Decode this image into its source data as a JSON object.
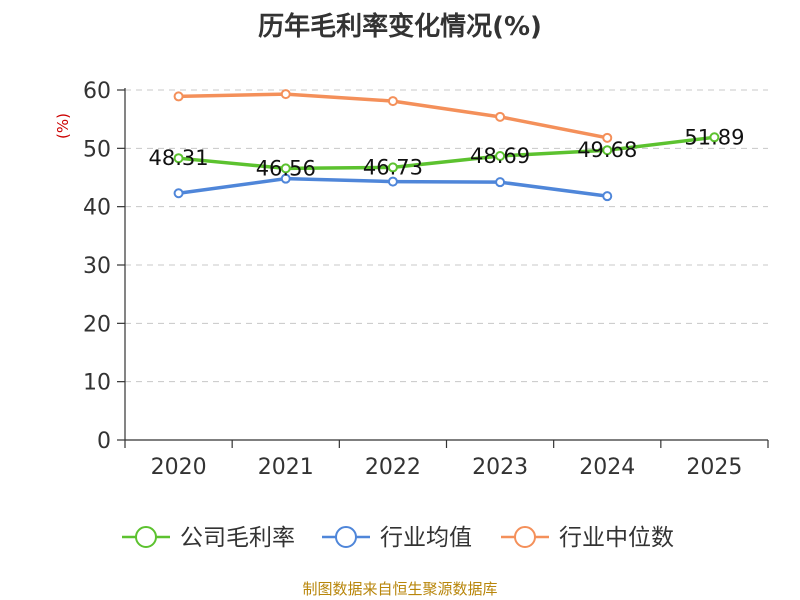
{
  "chart_data": {
    "type": "line",
    "title": "历年毛利率变化情况(%)",
    "ylabel": "(%)",
    "xlabel": "",
    "categories": [
      "2020",
      "2021",
      "2022",
      "2023",
      "2024",
      "2025"
    ],
    "ylim": [
      0,
      60
    ],
    "yticks": [
      0,
      10,
      20,
      30,
      40,
      50,
      60
    ],
    "grid": true,
    "legend_position": "bottom",
    "series": [
      {
        "name": "公司毛利率",
        "color": "#5cc22f",
        "values": [
          48.31,
          46.56,
          46.73,
          48.69,
          49.68,
          51.89
        ],
        "labels": [
          "48.31",
          "46.56",
          "46.73",
          "48.69",
          "49.68",
          "51.89"
        ]
      },
      {
        "name": "行业均值",
        "color": "#4f86d9",
        "values": [
          42.3,
          44.8,
          44.3,
          44.2,
          41.8,
          null
        ]
      },
      {
        "name": "行业中位数",
        "color": "#f4905a",
        "values": [
          58.9,
          59.3,
          58.1,
          55.4,
          51.8,
          null
        ]
      }
    ]
  },
  "source": "制图数据来自恒生聚源数据库"
}
